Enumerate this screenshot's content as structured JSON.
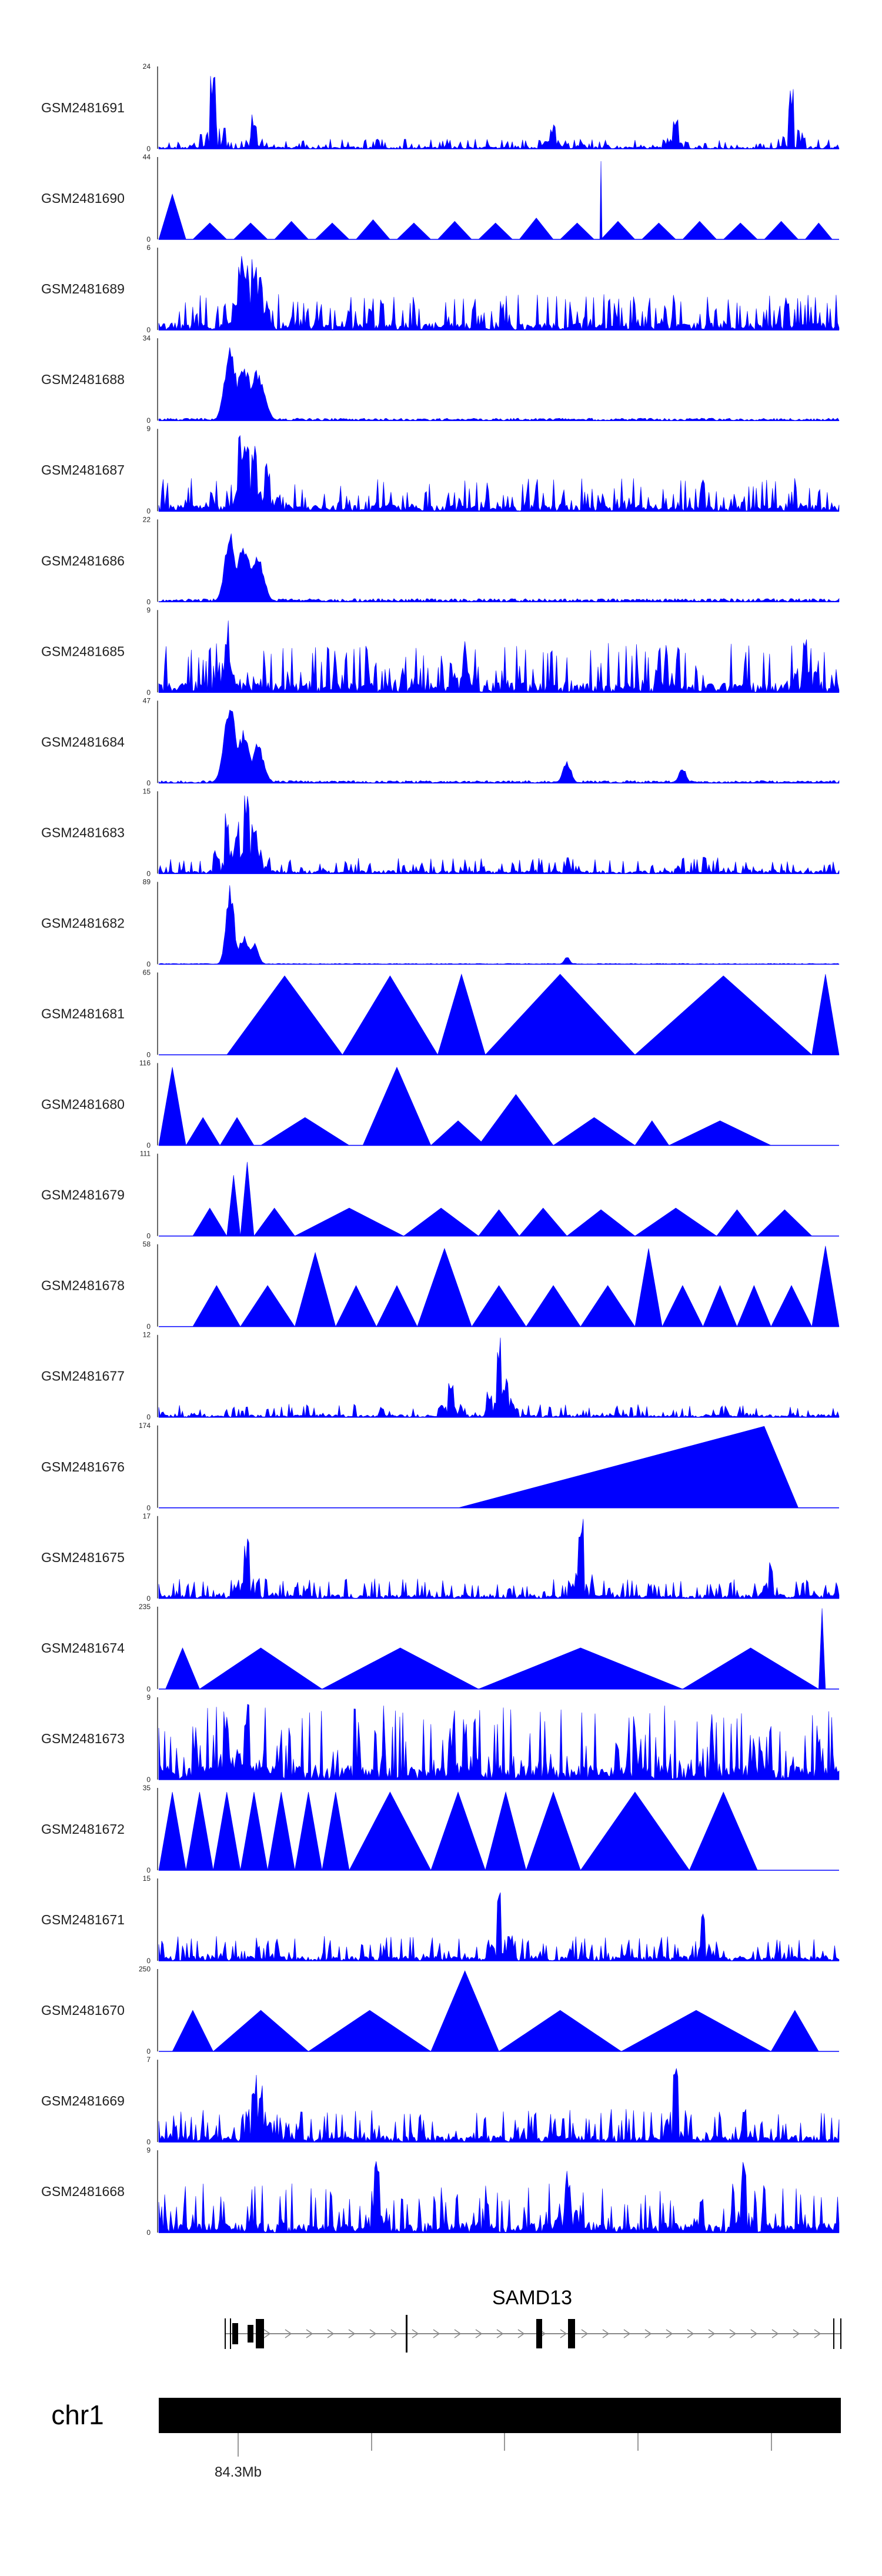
{
  "chart_data": {
    "type": "area",
    "title": "",
    "series_color": "#0000ff",
    "x_axis": {
      "chromosome": "chr1",
      "tick_label": "84.3Mb"
    },
    "gene": {
      "name": "SAMD13"
    },
    "tracks": [
      {
        "name": "GSM2481691",
        "ymax": "24",
        "ymin": "0",
        "max": 24
      },
      {
        "name": "GSM2481690",
        "ymax": "44",
        "ymin": "0",
        "max": 44
      },
      {
        "name": "GSM2481689",
        "ymax": "6",
        "ymin": "0",
        "max": 6
      },
      {
        "name": "GSM2481688",
        "ymax": "34",
        "ymin": "0",
        "max": 34
      },
      {
        "name": "GSM2481687",
        "ymax": "9",
        "ymin": "0",
        "max": 9
      },
      {
        "name": "GSM2481686",
        "ymax": "22",
        "ymin": "0",
        "max": 22
      },
      {
        "name": "GSM2481685",
        "ymax": "9",
        "ymin": "0",
        "max": 9
      },
      {
        "name": "GSM2481684",
        "ymax": "47",
        "ymin": "0",
        "max": 47
      },
      {
        "name": "GSM2481683",
        "ymax": "15",
        "ymin": "0",
        "max": 15
      },
      {
        "name": "GSM2481682",
        "ymax": "89",
        "ymin": "0",
        "max": 89
      },
      {
        "name": "GSM2481681",
        "ymax": "65",
        "ymin": "0",
        "max": 65
      },
      {
        "name": "GSM2481680",
        "ymax": "116",
        "ymin": "0",
        "max": 116
      },
      {
        "name": "GSM2481679",
        "ymax": "111",
        "ymin": "0",
        "max": 111
      },
      {
        "name": "GSM2481678",
        "ymax": "58",
        "ymin": "0",
        "max": 58
      },
      {
        "name": "GSM2481677",
        "ymax": "12",
        "ymin": "0",
        "max": 12
      },
      {
        "name": "GSM2481676",
        "ymax": "174",
        "ymin": "0",
        "max": 174
      },
      {
        "name": "GSM2481675",
        "ymax": "17",
        "ymin": "0",
        "max": 17
      },
      {
        "name": "GSM2481674",
        "ymax": "235",
        "ymin": "0",
        "max": 235
      },
      {
        "name": "GSM2481673",
        "ymax": "9",
        "ymin": "0",
        "max": 9
      },
      {
        "name": "GSM2481672",
        "ymax": "35",
        "ymin": "0",
        "max": 35
      },
      {
        "name": "GSM2481671",
        "ymax": "15",
        "ymin": "0",
        "max": 15
      },
      {
        "name": "GSM2481670",
        "ymax": "250",
        "ymin": "0",
        "max": 250
      },
      {
        "name": "GSM2481669",
        "ymax": "7",
        "ymin": "0",
        "max": 7
      },
      {
        "name": "GSM2481668",
        "ymax": "9",
        "ymin": "0",
        "max": 9
      }
    ]
  }
}
